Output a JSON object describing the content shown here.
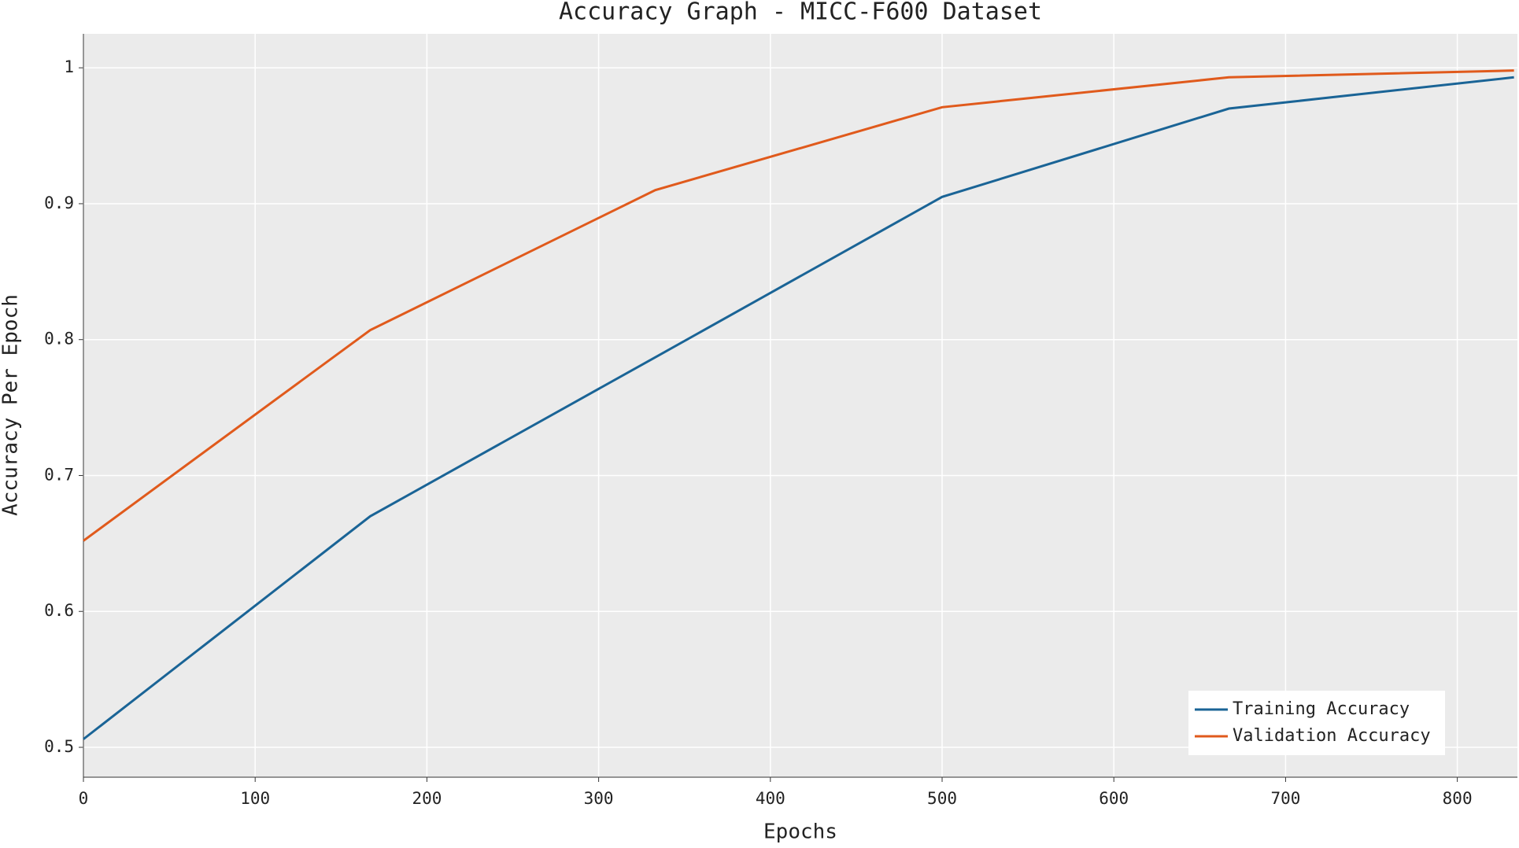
{
  "chart_data": {
    "type": "line",
    "title": "Accuracy Graph - MICC-F600 Dataset",
    "x_label": "Epochs",
    "y_label": "Accuracy Per Epoch",
    "x": [
      0,
      167,
      333,
      500,
      667,
      833
    ],
    "series": [
      {
        "name": "Training Accuracy",
        "color": "#1a6496",
        "values": [
          0.506,
          0.67,
          0.787,
          0.905,
          0.97,
          0.993
        ]
      },
      {
        "name": "Validation Accuracy",
        "color": "#e05a1c",
        "values": [
          0.652,
          0.807,
          0.91,
          0.971,
          0.993,
          0.998
        ]
      }
    ],
    "xlim": [
      0,
      835
    ],
    "xticks": [
      0,
      100,
      200,
      300,
      400,
      500,
      600,
      700,
      800
    ],
    "ylim": [
      0.478,
      1.025
    ],
    "yticks": [
      0.5,
      0.6,
      0.7,
      0.8,
      0.9,
      1
    ],
    "grid": true,
    "legend": "lower right"
  }
}
